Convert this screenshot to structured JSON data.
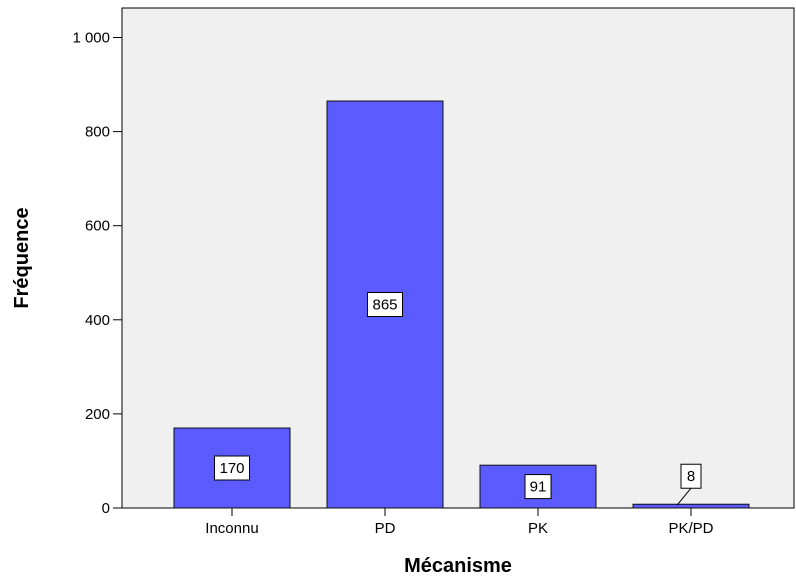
{
  "chart_data": {
    "type": "bar",
    "categories": [
      "Inconnu",
      "PD",
      "PK",
      "PK/PD"
    ],
    "values": [
      170,
      865,
      91,
      8
    ],
    "data_labels": [
      "170",
      "865",
      "91",
      "8"
    ],
    "title": "",
    "xlabel": "Mécanisme",
    "ylabel": "Fréquence",
    "ylim": [
      0,
      1050
    ],
    "yticks": [
      0,
      200,
      400,
      600,
      800,
      1000
    ],
    "ytick_labels": [
      "0",
      "200",
      "400",
      "600",
      "800",
      "1 000"
    ],
    "grid": false,
    "legend": "none",
    "colors": {
      "bar_fill": "#5B5BFF",
      "bar_stroke": "#111111",
      "plot_background": "#F0F0F0",
      "label_box_fill": "#FFFFFF"
    }
  }
}
